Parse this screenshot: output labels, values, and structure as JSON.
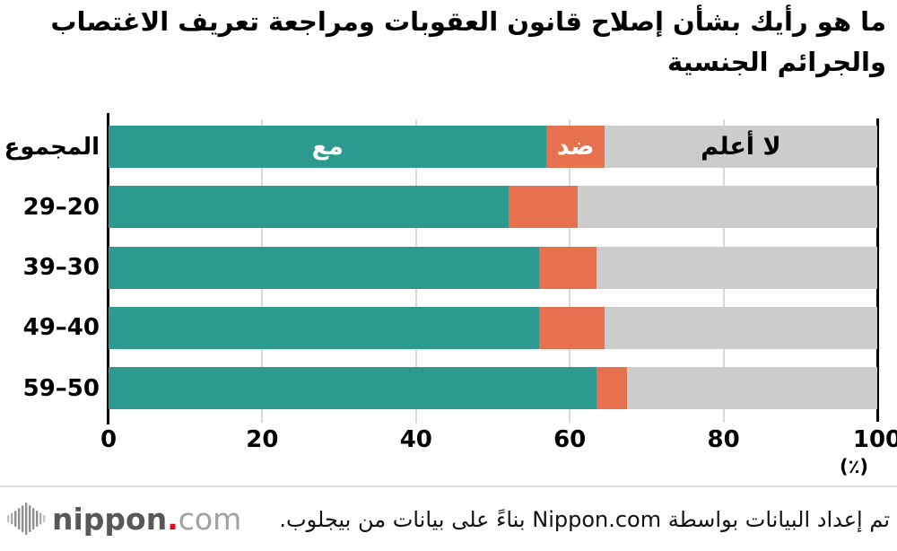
{
  "title": "ما هو رأيك بشأن إصلاح قانون العقوبات ومراجعة تعريف الاغتصاب والجرائم الجنسية",
  "chart_data": {
    "type": "bar",
    "orientation": "horizontal",
    "stacked": true,
    "title": "ما هو رأيك بشأن إصلاح قانون العقوبات ومراجعة تعريف الاغتصاب والجرائم الجنسية",
    "categories": [
      "المجموع",
      "29–20",
      "39–30",
      "49–40",
      "59–50"
    ],
    "series": [
      {
        "name": "مع",
        "color": "#2d9a8f",
        "label_color": "#ffffff",
        "values": [
          57,
          52,
          56,
          56,
          63.5
        ]
      },
      {
        "name": "ضد",
        "color": "#e7714e",
        "label_color": "#ffffff",
        "values": [
          7.5,
          9,
          7.5,
          8.5,
          4
        ]
      },
      {
        "name": "لا أعلم",
        "color": "#cccccc",
        "label_color": "#000000",
        "values": [
          35.5,
          39,
          36.5,
          35.5,
          32.5
        ]
      }
    ],
    "xlim": [
      0,
      100
    ],
    "x_ticks": [
      "0",
      "20",
      "40",
      "60",
      "80",
      "100"
    ],
    "x_unit_label": "(٪)",
    "grid": true,
    "legend_position": "inside-first-bar"
  },
  "colors": {
    "axis": "#000000",
    "gridline": "#d9d9d9",
    "logo_dark": "#595757",
    "logo_red": "#e60012",
    "logo_gray": "#9fa0a0",
    "logo_mark_gray": "#8f8f8f"
  },
  "icons": {
    "logo_mark": "soundwave-bars-icon"
  },
  "footer": {
    "credit": "تم إعداد البيانات بواسطة Nippon.com بناءً على بيانات من بيجلوب.",
    "logo": {
      "text_main": "nippon",
      "text_dot": ".",
      "text_suffix": "com"
    }
  }
}
